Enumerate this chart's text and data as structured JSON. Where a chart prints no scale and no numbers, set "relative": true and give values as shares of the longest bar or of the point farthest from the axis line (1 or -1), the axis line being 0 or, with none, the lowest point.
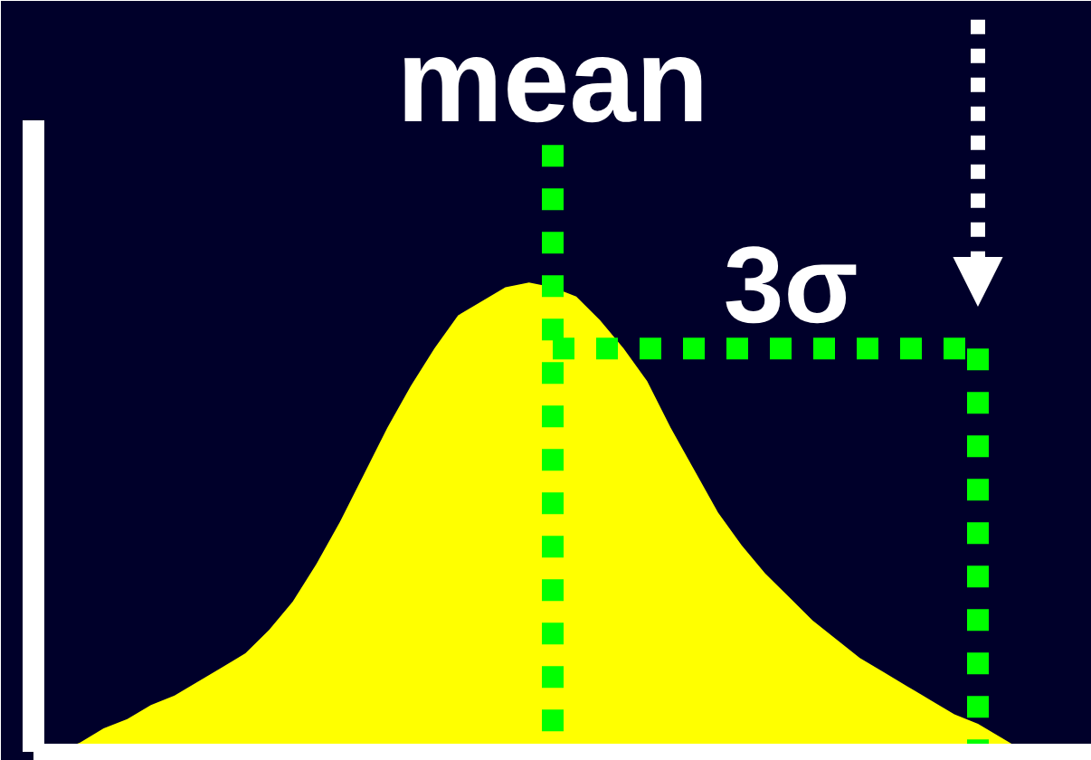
{
  "chart_data": {
    "type": "area",
    "relative": true,
    "categories": [
      null,
      null,
      null,
      null,
      null,
      null,
      null,
      null,
      null,
      null,
      null,
      null,
      null,
      null,
      null,
      null,
      null,
      null,
      null,
      null,
      null,
      null,
      null,
      null,
      null,
      null,
      null,
      null,
      null,
      null,
      null,
      null,
      null,
      null,
      null,
      null,
      null,
      null,
      null,
      null,
      null,
      null
    ],
    "values": [
      0,
      0.02,
      0.05,
      0.07,
      0.1,
      0.12,
      0.15,
      0.18,
      0.21,
      0.26,
      0.32,
      0.4,
      0.49,
      0.59,
      0.69,
      0.78,
      0.86,
      0.93,
      0.96,
      0.99,
      1.0,
      0.99,
      0.97,
      0.92,
      0.86,
      0.79,
      0.69,
      0.6,
      0.51,
      0.44,
      0.38,
      0.33,
      0.28,
      0.24,
      0.2,
      0.17,
      0.14,
      0.11,
      0.08,
      0.06,
      0.03,
      0
    ],
    "color": "#ffff00",
    "tick_labels": false,
    "annotations": [
      "mean",
      "3σ"
    ]
  }
}
